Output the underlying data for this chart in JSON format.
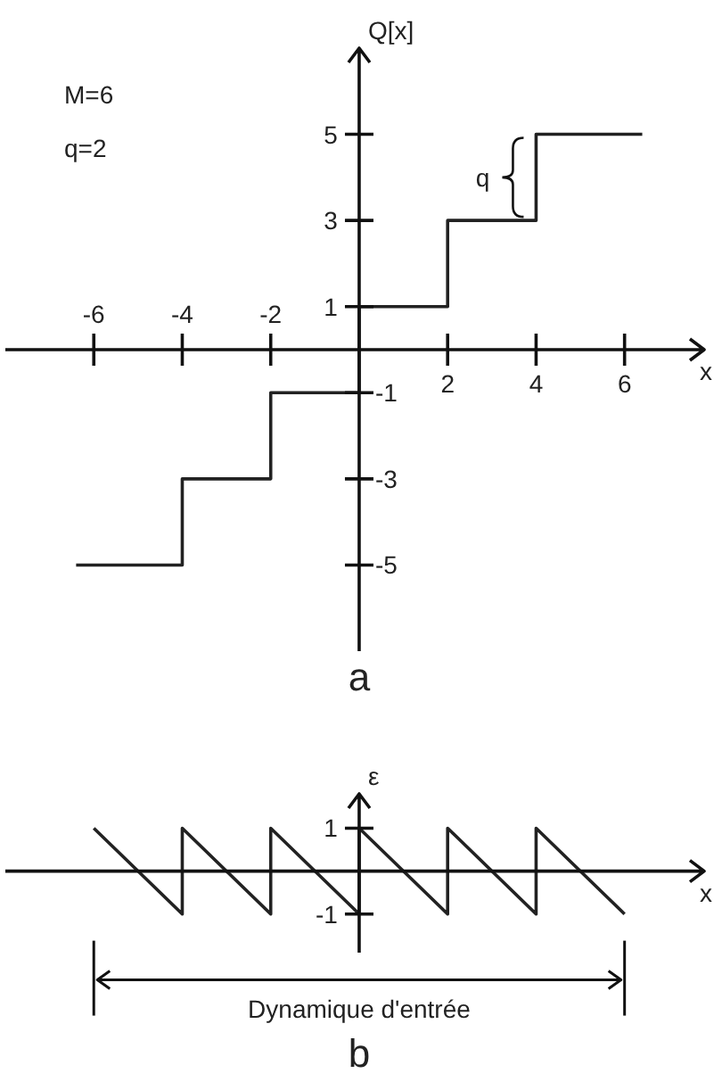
{
  "chart_data": [
    {
      "type": "step",
      "title": "a",
      "xlabel": "x",
      "ylabel": "Q[x]",
      "x": [
        -6.4,
        -4,
        -2,
        0,
        2,
        4,
        6.4
      ],
      "values": [
        -5,
        -3,
        -1,
        1,
        3,
        5,
        5
      ],
      "color": "#222222",
      "xlim": [
        -8,
        7.8
      ],
      "ylim": [
        -7,
        7
      ],
      "xticks": [
        2,
        4,
        6
      ],
      "x2lim": [
        -8,
        7.8
      ],
      "x2ticks": [
        -6,
        -4,
        -2
      ],
      "yticks": [
        -5,
        -3,
        -1
      ],
      "y2lim": [
        -7,
        7
      ],
      "y2ticks": [
        1,
        3,
        5
      ],
      "annotations": [
        "M=6",
        "q=2",
        "q"
      ]
    },
    {
      "type": "line",
      "title": "b",
      "xlabel": "x",
      "ylabel": "ε",
      "x": [
        -6,
        -4,
        -4,
        -2,
        -2,
        0,
        0,
        2,
        2,
        4,
        4,
        6
      ],
      "values": [
        1,
        -1,
        1,
        -1,
        1,
        -1,
        1,
        -1,
        1,
        -1,
        1,
        -1
      ],
      "color": "#222222",
      "xlim": [
        -8,
        7.8
      ],
      "ylim": [
        -1.9,
        1.8
      ],
      "yticks": [
        -1,
        1
      ],
      "tick_labels": "y",
      "annotations": [
        "Dynamique d'entrée"
      ]
    }
  ]
}
